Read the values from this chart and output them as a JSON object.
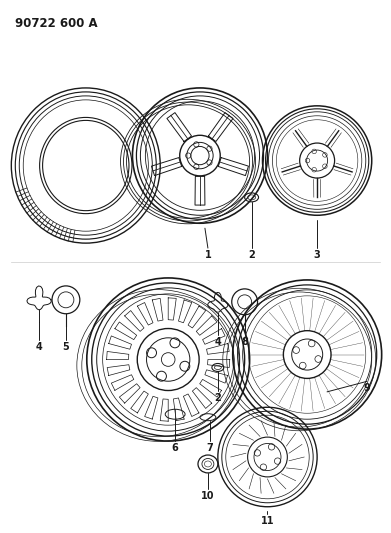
{
  "title": "90722 600 A",
  "bg_color": "#ffffff",
  "line_color": "#1a1a1a",
  "fig_width": 3.91,
  "fig_height": 5.33,
  "dpi": 100,
  "title_fontsize": 8.5,
  "label_fontsize": 7
}
